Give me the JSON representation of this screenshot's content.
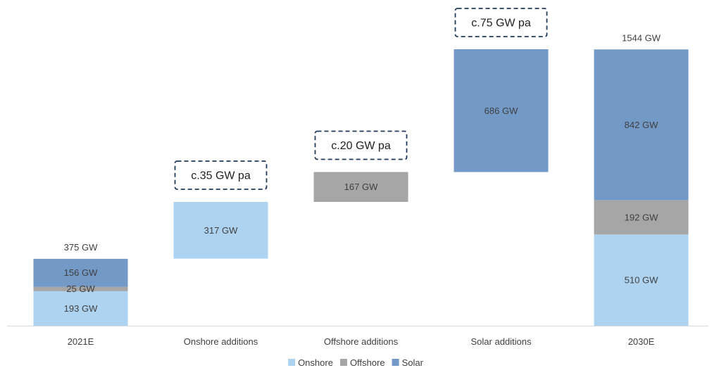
{
  "chart_data": {
    "type": "waterfall",
    "unit": "GW",
    "categories": [
      "2021E",
      "Onshore additions",
      "Offshore additions",
      "Solar additions",
      "2030E"
    ],
    "series": [
      {
        "name": "Onshore",
        "color": "#aed3f0"
      },
      {
        "name": "Offshore",
        "color": "#a6a6a6"
      },
      {
        "name": "Solar",
        "color": "#7399c6"
      }
    ],
    "bars": [
      {
        "category": "2021E",
        "kind": "total",
        "total_label": "375 GW",
        "segments": [
          {
            "series": "Onshore",
            "value": 193,
            "label": "193 GW"
          },
          {
            "series": "Offshore",
            "value": 25,
            "label": "25 GW"
          },
          {
            "series": "Solar",
            "value": 156,
            "label": "156 GW"
          }
        ]
      },
      {
        "category": "Onshore additions",
        "kind": "increment",
        "base": 375,
        "annotation": "c.35 GW pa",
        "segments": [
          {
            "series": "Onshore",
            "value": 317,
            "label": "317 GW"
          }
        ]
      },
      {
        "category": "Offshore additions",
        "kind": "increment",
        "base": 692,
        "annotation": "c.20 GW pa",
        "segments": [
          {
            "series": "Offshore",
            "value": 167,
            "label": "167 GW"
          }
        ]
      },
      {
        "category": "Solar additions",
        "kind": "increment",
        "base": 859,
        "annotation": "c.75 GW pa",
        "segments": [
          {
            "series": "Solar",
            "value": 686,
            "label": "686 GW"
          }
        ]
      },
      {
        "category": "2030E",
        "kind": "total",
        "total_label": "1544 GW",
        "segments": [
          {
            "series": "Onshore",
            "value": 510,
            "label": "510 GW"
          },
          {
            "series": "Offshore",
            "value": 192,
            "label": "192 GW"
          },
          {
            "series": "Solar",
            "value": 842,
            "label": "842 GW"
          }
        ]
      }
    ],
    "ylim": [
      0,
      1545
    ],
    "grid": false,
    "legend_position": "bottom",
    "title": "",
    "xlabel": "",
    "ylabel": ""
  }
}
